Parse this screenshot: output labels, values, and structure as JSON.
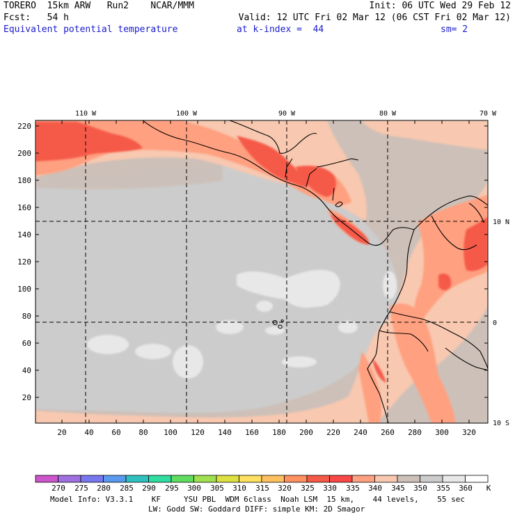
{
  "header": {
    "line1_left": "TORERO  15km ARW   Run2    NCAR/MMM",
    "line1_right": "Init: 06 UTC Wed 29 Feb 12",
    "line2_left": "Fcst:   54 h",
    "line2_right": "Valid: 12 UTC Fri 02 Mar 12 (06 CST Fri 02 Mar 12)",
    "line3_field": "Equivalent potential temperature",
    "line3_level": "at k-index =  44",
    "line3_sm": "sm= 2"
  },
  "map": {
    "top_lon_labels": [
      "110 W",
      "100 W",
      "90 W",
      "80 W",
      "70 W"
    ],
    "right_lat_labels": [
      "10 N",
      "0",
      "10 S"
    ],
    "left_axis_labels": [
      "220",
      "200",
      "180",
      "160",
      "140",
      "120",
      "100",
      "80",
      "60",
      "40",
      "20"
    ],
    "bottom_axis_labels": [
      "20",
      "40",
      "60",
      "80",
      "100",
      "120",
      "140",
      "160",
      "180",
      "200",
      "220",
      "240",
      "260",
      "280",
      "300",
      "320"
    ]
  },
  "colorbar": {
    "labels": [
      "270",
      "275",
      "280",
      "285",
      "290",
      "295",
      "300",
      "305",
      "310",
      "315",
      "320",
      "325",
      "330",
      "335",
      "340",
      "345",
      "350",
      "355",
      "360"
    ],
    "unit": "K",
    "colors": [
      "#cc55cc",
      "#a070e0",
      "#7878ee",
      "#5a9aee",
      "#30c0c0",
      "#30dda0",
      "#60dd60",
      "#a0e050",
      "#dde040",
      "#ffe060",
      "#ffc060",
      "#ff9060",
      "#f55a48",
      "#f84848",
      "#ffa080",
      "#f8c8b0",
      "#cdc0b8",
      "#cccccc",
      "#e8e8e8",
      "#ffffff"
    ]
  },
  "footer": {
    "line1": "Model Info: V3.3.1    KF     YSU PBL  WDM 6class  Noah LSM  15 km,    44 levels,    55 sec",
    "line2": "LW: Godd SW: Goddard DIFF: simple KM: 2D Smagor"
  }
}
